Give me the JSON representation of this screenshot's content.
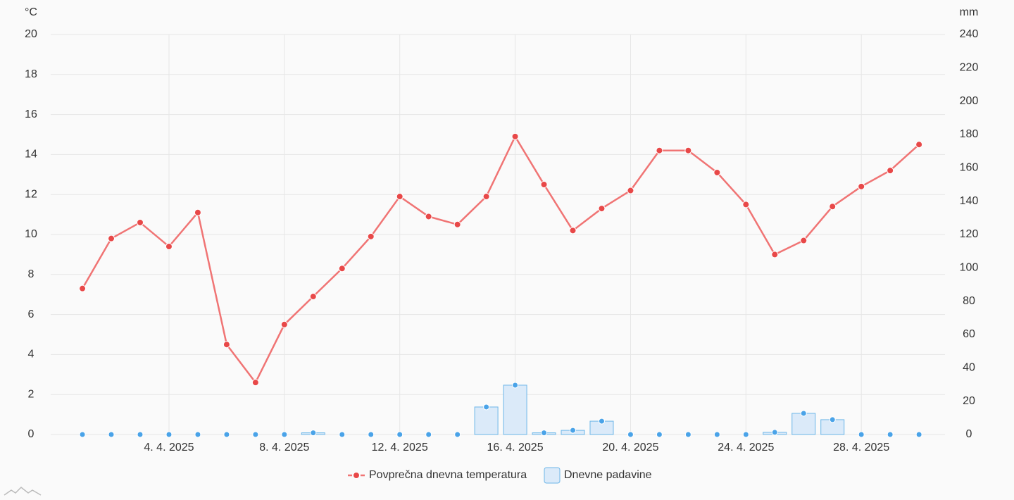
{
  "chart_data": {
    "type": "line-bar",
    "y_label": "°C",
    "y2_label": "mm",
    "x": [
      1,
      2,
      3,
      4,
      5,
      6,
      7,
      8,
      9,
      10,
      11,
      12,
      13,
      14,
      15,
      16,
      17,
      18,
      19,
      20,
      21,
      22,
      23,
      24,
      25,
      26,
      27,
      28,
      29,
      30
    ],
    "xlim": [
      -0.1,
      30.9
    ],
    "xticks": [
      {
        "value": 4,
        "label": "4. 4. 2025"
      },
      {
        "value": 8,
        "label": "8. 4. 2025"
      },
      {
        "value": 12,
        "label": "12. 4. 2025"
      },
      {
        "value": 16,
        "label": "16. 4. 2025"
      },
      {
        "value": 20,
        "label": "20. 4. 2025"
      },
      {
        "value": 24,
        "label": "24. 4. 2025"
      },
      {
        "value": 28,
        "label": "28. 4. 2025"
      }
    ],
    "ylim": [
      0,
      20
    ],
    "yticks": [
      0,
      2,
      4,
      6,
      8,
      10,
      12,
      14,
      16,
      18,
      20
    ],
    "y2lim": [
      0,
      240
    ],
    "y2ticks": [
      0,
      20,
      40,
      60,
      80,
      100,
      120,
      140,
      160,
      180,
      200,
      220,
      240
    ],
    "grid": true,
    "series": [
      {
        "name": "Povprečna dnevna temperatura",
        "type": "line",
        "color": "#f07474",
        "marker_color": "#e84848",
        "values": [
          7.3,
          9.8,
          10.6,
          9.4,
          11.1,
          4.5,
          2.6,
          5.5,
          6.9,
          8.3,
          9.9,
          11.9,
          10.9,
          10.5,
          11.9,
          14.9,
          12.5,
          10.2,
          11.3,
          12.2,
          14.2,
          14.2,
          13.1,
          11.5,
          9.0,
          9.7,
          11.4,
          12.4,
          13.2,
          14.5
        ]
      },
      {
        "name": "Dnevne padavine",
        "type": "bar",
        "axis": "y2",
        "color": "#6cb6e8",
        "fill": "#dbeaf9",
        "marker_color": "#4aa3e8",
        "values": [
          0,
          0,
          0,
          0,
          0,
          0,
          0,
          0,
          1.0,
          0,
          0,
          0,
          0,
          0,
          16.5,
          29.6,
          1.0,
          2.5,
          8.0,
          0,
          0,
          0,
          0,
          0,
          1.3,
          12.7,
          8.9,
          0,
          0,
          0
        ]
      }
    ]
  }
}
